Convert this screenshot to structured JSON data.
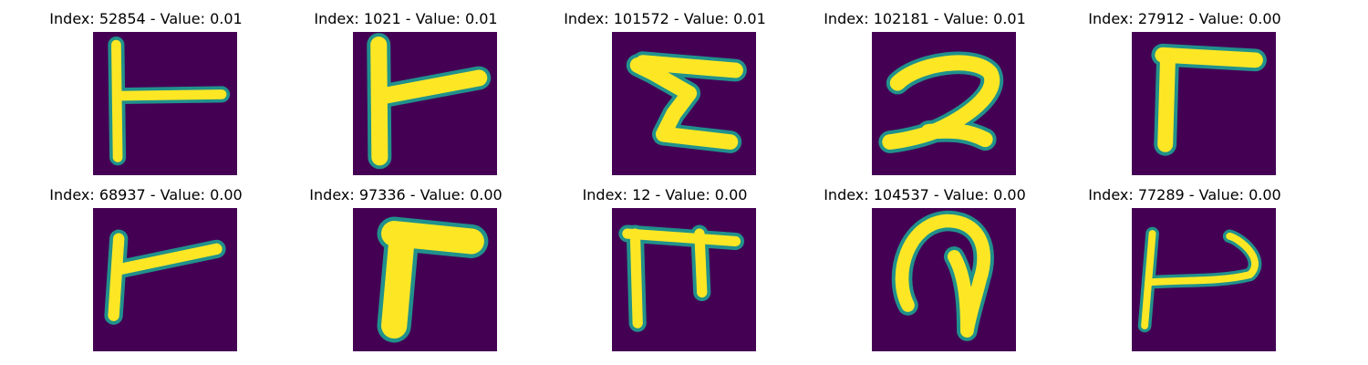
{
  "colors": {
    "background": "#440154",
    "foreground": "#fde725",
    "edge": "#21918c"
  },
  "chart_data": {
    "type": "image-grid",
    "colormap": "viridis",
    "panels": [
      {
        "title": "Index: 52854 - Value: 0.01",
        "index": 52854,
        "value": 0.01,
        "glyph": "t-bar"
      },
      {
        "title": "Index: 1021 - Value: 0.01",
        "index": 1021,
        "value": 0.01,
        "glyph": "t-bar-thick"
      },
      {
        "title": "Index: 101572 - Value: 0.01",
        "index": 101572,
        "value": 0.01,
        "glyph": "z-shape"
      },
      {
        "title": "Index: 102181 - Value: 0.01",
        "index": 102181,
        "value": 0.01,
        "glyph": "two-shape"
      },
      {
        "title": "Index: 27912 - Value: 0.00",
        "index": 27912,
        "value": 0.0,
        "glyph": "gamma-shape"
      },
      {
        "title": "Index: 68937 - Value: 0.00",
        "index": 68937,
        "value": 0.0,
        "glyph": "t-bar"
      },
      {
        "title": "Index: 97336 - Value: 0.00",
        "index": 97336,
        "value": 0.0,
        "glyph": "thick-gamma"
      },
      {
        "title": "Index: 12 - Value: 0.00",
        "index": 12,
        "value": 0.0,
        "glyph": "pi-shape"
      },
      {
        "title": "Index: 104537 - Value: 0.00",
        "index": 104537,
        "value": 0.0,
        "glyph": "loop-shape"
      },
      {
        "title": "Index: 77289 - Value: 0.00",
        "index": 77289,
        "value": 0.0,
        "glyph": "hook-shape"
      }
    ]
  }
}
